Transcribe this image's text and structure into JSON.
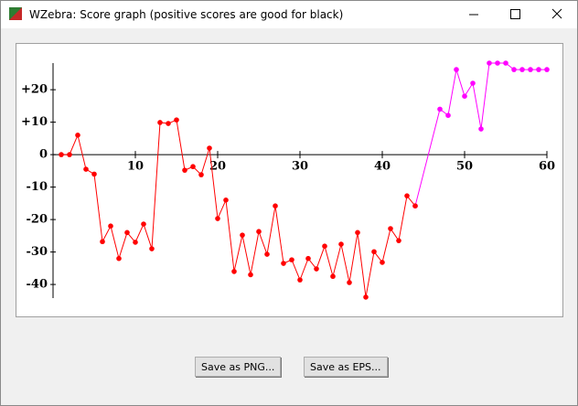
{
  "window": {
    "title": "WZebra: Score graph (positive scores are good for black)"
  },
  "buttons": [
    "Save as PNG...",
    "Save as EPS..."
  ],
  "chart_data": {
    "type": "line",
    "xlim": [
      0,
      60
    ],
    "ylim": [
      -44.2,
      28.2
    ],
    "xticks": [
      10,
      20,
      30,
      40,
      50,
      60
    ],
    "yticks": [
      {
        "value": 20,
        "label": "+20"
      },
      {
        "value": 10,
        "label": "+10"
      },
      0,
      -10,
      -20,
      -30,
      -40
    ],
    "series": [
      {
        "color": "#ff00ff",
        "x": [
          44,
          47,
          48,
          49,
          50,
          51,
          52,
          53,
          54,
          55,
          56,
          57,
          58,
          59,
          60
        ],
        "values": [
          -15.8,
          14,
          12.1,
          26.2,
          18,
          22,
          7.9,
          28.2,
          28.2,
          28.2,
          26.2,
          26.2,
          26.2,
          26.2,
          26.2
        ]
      },
      {
        "color": "#ff0000",
        "x": [
          1,
          2,
          3,
          4,
          5,
          6,
          7,
          8,
          9,
          10,
          11,
          12,
          13,
          14,
          15,
          16,
          17,
          18,
          19,
          20,
          21,
          22,
          23,
          24,
          25,
          26,
          27,
          28,
          29,
          30,
          31,
          32,
          33,
          34,
          35,
          36,
          37,
          38,
          39,
          40,
          41,
          42,
          43,
          44
        ],
        "values": [
          0,
          0,
          6,
          -4.5,
          -6,
          -26.8,
          -22,
          -32,
          -24,
          -27,
          -21.4,
          -29,
          9.9,
          9.6,
          10.7,
          -4.8,
          -3.7,
          -6.2,
          2,
          -19.7,
          -14,
          -36,
          -24.8,
          -37,
          -23.7,
          -30.7,
          -15.8,
          -33.5,
          -32.4,
          -38.6,
          -32,
          -35.2,
          -28.2,
          -37.5,
          -27.6,
          -39.4,
          -24,
          -43.9,
          -29.9,
          -33.2,
          -22.8,
          -26.5,
          -12.7,
          -15.8
        ]
      }
    ]
  }
}
